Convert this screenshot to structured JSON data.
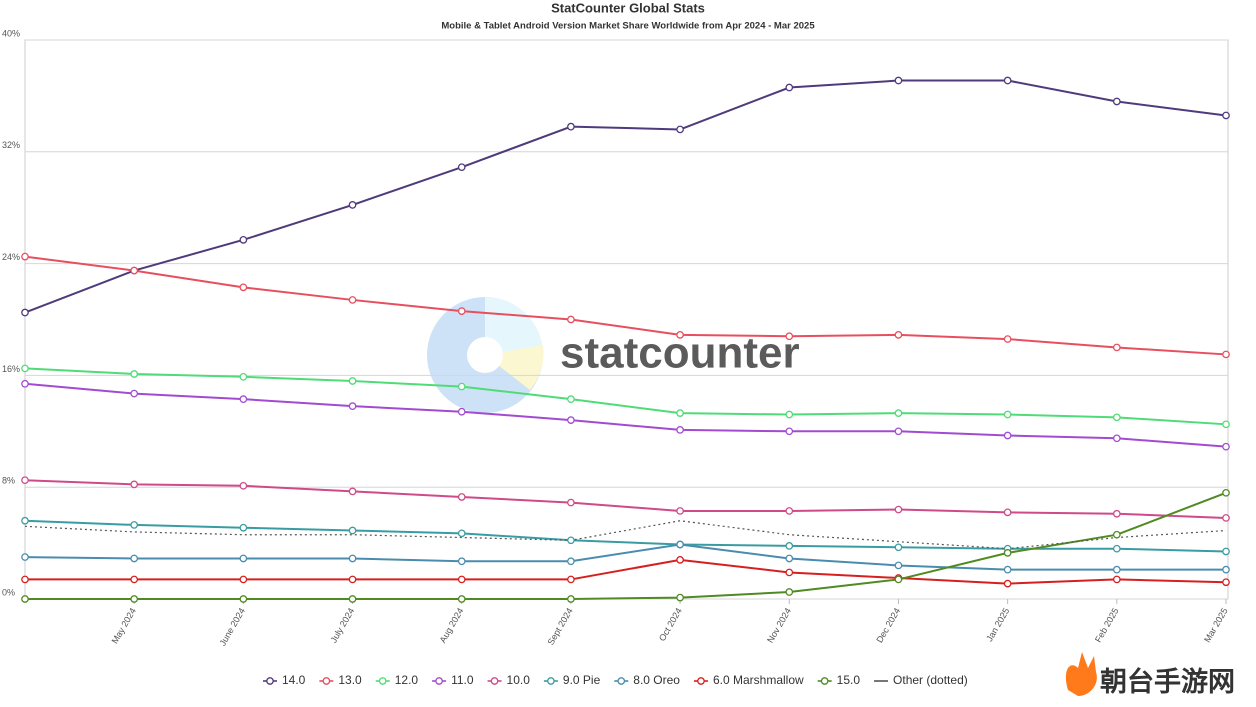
{
  "chart_data": {
    "type": "line",
    "title": "StatCounter Global Stats",
    "subtitle": "Mobile & Tablet Android Version Market Share Worldwide from Apr 2024 - Mar 2025",
    "watermark": "statcounter",
    "site_watermark": "朝台手游网",
    "categories": [
      null,
      "May 2024",
      "June 2024",
      "July 2024",
      "Aug 2024",
      "Sept 2024",
      "Oct 2024",
      "Nov 2024",
      "Dec 2024",
      "Jan 2025",
      "Feb 2025",
      "Mar 2025"
    ],
    "ylim": [
      0,
      40
    ],
    "yticks": [
      {
        "value": 0,
        "label": "0%"
      },
      {
        "value": 8,
        "label": "8%"
      },
      {
        "value": 16,
        "label": "16%"
      },
      {
        "value": 24,
        "label": "24%"
      },
      {
        "value": 32,
        "label": "32%"
      },
      {
        "value": 40,
        "label": "40%"
      }
    ],
    "grid": true,
    "series": [
      {
        "name": "14.0",
        "color": "#4f3a7c",
        "values": [
          20.5,
          23.5,
          25.7,
          28.2,
          30.9,
          33.8,
          33.6,
          36.6,
          37.1,
          37.1,
          35.6,
          34.6
        ]
      },
      {
        "name": "13.0",
        "color": "#e84f5e",
        "values": [
          24.5,
          23.5,
          22.3,
          21.4,
          20.6,
          20.0,
          18.9,
          18.8,
          18.9,
          18.6,
          18.0,
          17.5
        ]
      },
      {
        "name": "12.0",
        "color": "#4fdc76",
        "values": [
          16.5,
          16.1,
          15.9,
          15.6,
          15.2,
          14.3,
          13.3,
          13.2,
          13.3,
          13.2,
          13.0,
          12.5
        ]
      },
      {
        "name": "11.0",
        "color": "#a24bd0",
        "values": [
          15.4,
          14.7,
          14.3,
          13.8,
          13.4,
          12.8,
          12.1,
          12.0,
          12.0,
          11.7,
          11.5,
          10.9
        ]
      },
      {
        "name": "10.0",
        "color": "#cf4a88",
        "values": [
          8.5,
          8.2,
          8.1,
          7.7,
          7.3,
          6.9,
          6.3,
          6.3,
          6.4,
          6.2,
          6.1,
          5.8
        ]
      },
      {
        "name": "9.0 Pie",
        "color": "#3a9ca2",
        "values": [
          5.6,
          5.3,
          5.1,
          4.9,
          4.7,
          4.2,
          3.9,
          3.8,
          3.7,
          3.6,
          3.6,
          3.4
        ]
      },
      {
        "name": "8.0 Oreo",
        "color": "#4a8caf",
        "values": [
          3.0,
          2.9,
          2.9,
          2.9,
          2.7,
          2.7,
          3.9,
          2.9,
          2.4,
          2.1,
          2.1,
          2.1
        ]
      },
      {
        "name": "6.0 Marshmallow",
        "color": "#d71f1f",
        "values": [
          1.4,
          1.4,
          1.4,
          1.4,
          1.4,
          1.4,
          2.8,
          1.9,
          1.5,
          1.1,
          1.4,
          1.2
        ]
      },
      {
        "name": "15.0",
        "color": "#4f8a22",
        "values": [
          0,
          0,
          0,
          0,
          0,
          0,
          0.1,
          0.5,
          1.4,
          3.3,
          4.6,
          7.6
        ]
      },
      {
        "name": "Other (dotted)",
        "color": "#555555",
        "dotted": true,
        "values": [
          5.2,
          4.8,
          4.6,
          4.6,
          4.4,
          4.2,
          5.6,
          4.6,
          4.1,
          3.6,
          4.4,
          4.9
        ]
      }
    ]
  }
}
